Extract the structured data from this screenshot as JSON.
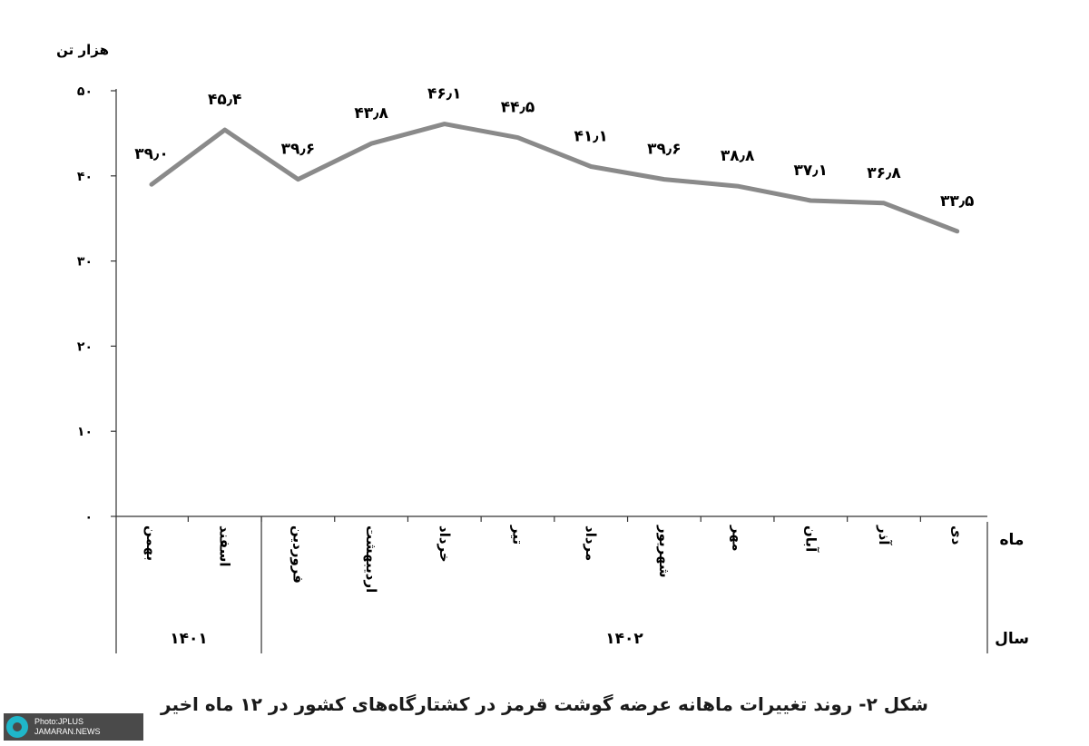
{
  "chart_data": {
    "type": "line",
    "unit": "هزار تن",
    "ylim": [
      0,
      50
    ],
    "yticks": [
      "۰",
      "۱۰",
      "۲۰",
      "۳۰",
      "۴۰",
      "۵۰"
    ],
    "categories": [
      "بهمن",
      "اسفند",
      "فروردین",
      "اردیبهشت",
      "خرداد",
      "تیر",
      "مرداد",
      "شهریور",
      "مهر",
      "آبان",
      "آذر",
      "دی"
    ],
    "values": [
      39.0,
      45.4,
      39.6,
      43.8,
      46.1,
      44.5,
      41.1,
      39.6,
      38.8,
      37.1,
      36.8,
      33.5
    ],
    "value_labels": [
      "۳۹٫۰",
      "۴۵٫۴",
      "۳۹٫۶",
      "۴۳٫۸",
      "۴۶٫۱",
      "۴۴٫۵",
      "۴۱٫۱",
      "۳۹٫۶",
      "۳۸٫۸",
      "۳۷٫۱",
      "۳۶٫۸",
      "۳۳٫۵"
    ],
    "year_groups": [
      {
        "label": "۱۴۰۱",
        "count": 2
      },
      {
        "label": "۱۴۰۲",
        "count": 10
      }
    ],
    "row_labels": {
      "month": "ماه",
      "year": "سال"
    },
    "line_color": "#8a8a8a",
    "grid": false,
    "caption": "شکل ۲- روند تغییرات ماهانه عرضه گوشت قرمز در کشتارگاه‌های کشور در ۱۲ ماه اخیر"
  },
  "watermark": {
    "line1": "Photo:JPLUS",
    "line2": "JAMARAN.NEWS",
    "icon": "jplus-logo-icon"
  }
}
